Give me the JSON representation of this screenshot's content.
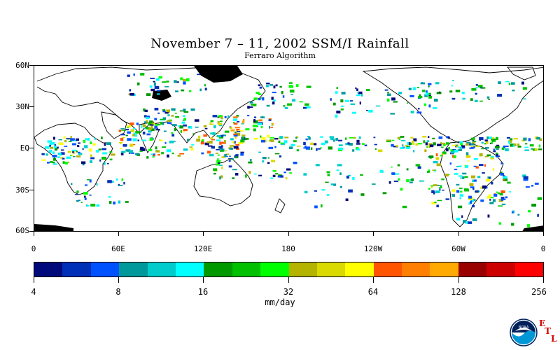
{
  "title": "November 7 – 11, 2002 SSM/I Rainfall",
  "subtitle": "Ferraro Algorithm",
  "map": {
    "lat_labels": [
      "60N",
      "30N",
      "EQ",
      "30S",
      "60S"
    ],
    "lon_labels": [
      "0",
      "60E",
      "120E",
      "180",
      "120W",
      "60W",
      "0"
    ]
  },
  "colorbar": {
    "colors": [
      "#000a7a",
      "#0030b8",
      "#0052ff",
      "#00999b",
      "#00cccc",
      "#00ffff",
      "#009900",
      "#00c000",
      "#00ff00",
      "#b3b300",
      "#dada00",
      "#ffff00",
      "#ff5500",
      "#ff8000",
      "#ffaa00",
      "#990000",
      "#cc0000",
      "#ff0000"
    ],
    "tick_labels": [
      "4",
      "8",
      "16",
      "32",
      "64",
      "128",
      "256"
    ],
    "units": "mm/day"
  },
  "logo": {
    "icon": "noaa-logo-icon",
    "text": "NOAA",
    "etl_letters": [
      "E",
      "T",
      "L"
    ]
  }
}
